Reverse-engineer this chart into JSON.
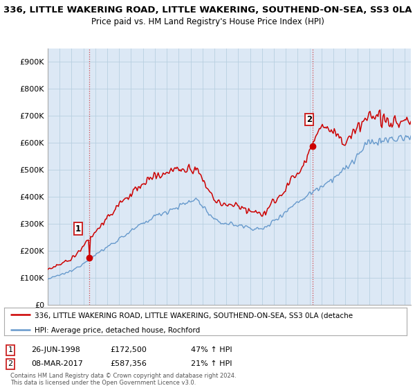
{
  "title": "336, LITTLE WAKERING ROAD, LITTLE WAKERING, SOUTHEND-ON-SEA, SS3 0LA",
  "subtitle": "Price paid vs. HM Land Registry's House Price Index (HPI)",
  "ylabel_ticks": [
    "£0",
    "£100K",
    "£200K",
    "£300K",
    "£400K",
    "£500K",
    "£600K",
    "£700K",
    "£800K",
    "£900K"
  ],
  "ytick_values": [
    0,
    100000,
    200000,
    300000,
    400000,
    500000,
    600000,
    700000,
    800000,
    900000
  ],
  "ylim": [
    0,
    950000
  ],
  "xlim_start": 1995.0,
  "xlim_end": 2025.5,
  "red_line_color": "#cc0000",
  "blue_line_color": "#6699cc",
  "plot_bg_color": "#dce8f5",
  "point1_x": 1998.49,
  "point1_y": 172500,
  "point2_x": 2017.19,
  "point2_y": 587356,
  "point1_label": "26-JUN-1998",
  "point2_label": "08-MAR-2017",
  "point1_price": "£172,500",
  "point2_price": "£587,356",
  "point1_hpi": "47% ↑ HPI",
  "point2_hpi": "21% ↑ HPI",
  "legend_red": "336, LITTLE WAKERING ROAD, LITTLE WAKERING, SOUTHEND-ON-SEA, SS3 0LA (detache",
  "legend_blue": "HPI: Average price, detached house, Rochford",
  "footnote": "Contains HM Land Registry data © Crown copyright and database right 2024.\nThis data is licensed under the Open Government Licence v3.0.",
  "bg_color": "#ffffff",
  "grid_color": "#b8cfe0"
}
